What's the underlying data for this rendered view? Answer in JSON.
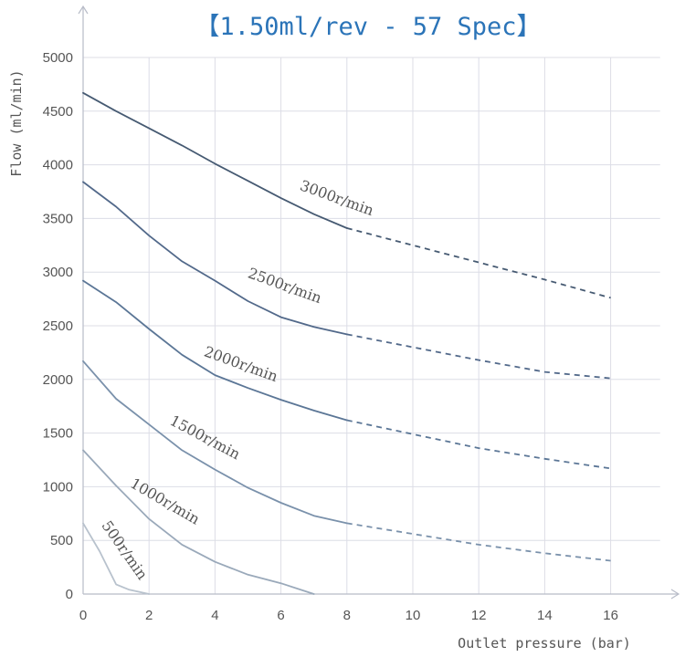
{
  "chart_data": {
    "type": "line",
    "title": "【1.50ml/rev - 57 Spec】",
    "xlabel": "Outlet pressure (bar)",
    "ylabel": "Flow (ml/min)",
    "xlim": [
      0,
      17.5
    ],
    "ylim": [
      0,
      5000
    ],
    "x_ticks": [
      0,
      2,
      4,
      6,
      8,
      10,
      12,
      14,
      16
    ],
    "y_ticks": [
      0,
      500,
      1000,
      1500,
      2000,
      2500,
      3000,
      3500,
      4000,
      4500,
      5000
    ],
    "grid": true,
    "legend": "none (curves labelled inline)",
    "series": [
      {
        "name": "3000r/min",
        "color": "#465a72",
        "solid": [
          [
            0,
            4670
          ],
          [
            1,
            4500
          ],
          [
            2,
            4340
          ],
          [
            3,
            4180
          ],
          [
            4,
            4010
          ],
          [
            5,
            3850
          ],
          [
            6,
            3690
          ],
          [
            7,
            3540
          ],
          [
            8,
            3410
          ]
        ],
        "dashed": [
          [
            8,
            3410
          ],
          [
            10,
            3250
          ],
          [
            12,
            3090
          ],
          [
            14,
            2930
          ],
          [
            16,
            2760
          ]
        ]
      },
      {
        "name": "2500r/min",
        "color": "#52698a",
        "solid": [
          [
            0,
            3840
          ],
          [
            1,
            3610
          ],
          [
            2,
            3340
          ],
          [
            3,
            3100
          ],
          [
            4,
            2920
          ],
          [
            5,
            2730
          ],
          [
            6,
            2580
          ],
          [
            7,
            2490
          ],
          [
            8,
            2420
          ]
        ],
        "dashed": [
          [
            8,
            2420
          ],
          [
            10,
            2300
          ],
          [
            12,
            2180
          ],
          [
            14,
            2070
          ],
          [
            16,
            2010
          ]
        ]
      },
      {
        "name": "2000r/min",
        "color": "#5b7696",
        "solid": [
          [
            0,
            2920
          ],
          [
            1,
            2720
          ],
          [
            2,
            2470
          ],
          [
            3,
            2230
          ],
          [
            4,
            2040
          ],
          [
            5,
            1920
          ],
          [
            6,
            1810
          ],
          [
            7,
            1710
          ],
          [
            8,
            1620
          ]
        ],
        "dashed": [
          [
            8,
            1620
          ],
          [
            10,
            1490
          ],
          [
            12,
            1360
          ],
          [
            14,
            1260
          ],
          [
            16,
            1170
          ]
        ]
      },
      {
        "name": "1500r/min",
        "color": "#7a91ab",
        "solid": [
          [
            0,
            2170
          ],
          [
            1,
            1820
          ],
          [
            2,
            1580
          ],
          [
            3,
            1340
          ],
          [
            4,
            1160
          ],
          [
            5,
            990
          ],
          [
            6,
            850
          ],
          [
            7,
            730
          ],
          [
            8,
            660
          ]
        ],
        "dashed": [
          [
            8,
            660
          ],
          [
            10,
            560
          ],
          [
            12,
            460
          ],
          [
            14,
            380
          ],
          [
            16,
            310
          ]
        ]
      },
      {
        "name": "1000r/min",
        "color": "#9aa9ba",
        "solid": [
          [
            0,
            1340
          ],
          [
            1,
            1010
          ],
          [
            2,
            700
          ],
          [
            3,
            460
          ],
          [
            4,
            300
          ],
          [
            5,
            180
          ],
          [
            6,
            100
          ],
          [
            7,
            0
          ]
        ],
        "dashed": []
      },
      {
        "name": "500r/min",
        "color": "#b8c2cd",
        "solid": [
          [
            0,
            660
          ],
          [
            0.5,
            400
          ],
          [
            1,
            90
          ],
          [
            1.4,
            40
          ],
          [
            2,
            0
          ]
        ],
        "dashed": []
      }
    ]
  }
}
